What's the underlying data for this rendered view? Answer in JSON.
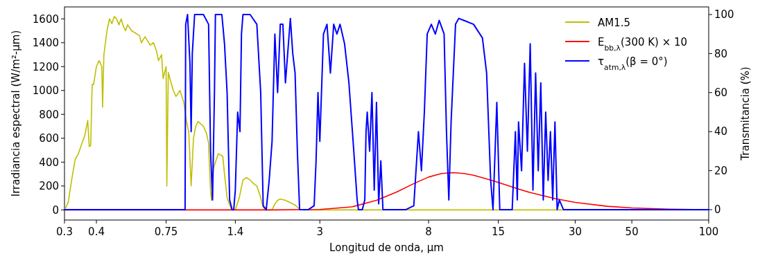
{
  "chart_data": {
    "type": "line",
    "xlabel": "Longitud de onda, μm",
    "ylabel": "Irradiancia espectral (W/m²-μm)",
    "y2label": "Transmitancia (%)",
    "log": "x",
    "xlim": [
      0.3,
      100
    ],
    "xticks": [
      0.3,
      0.4,
      0.75,
      1.4,
      3,
      8,
      15,
      30,
      50,
      100
    ],
    "ylim": [
      -85,
      1700
    ],
    "yticks": [
      0,
      200,
      400,
      600,
      800,
      1000,
      1200,
      1400,
      1600
    ],
    "y2lim": [
      -5.3,
      103.9
    ],
    "y2ticks": [
      0,
      20,
      40,
      60,
      80,
      100
    ],
    "grid": false,
    "legend": "top right",
    "line_style": "solid",
    "marker": "none",
    "series": [
      {
        "name": "AM1.5",
        "color": "#bfbf00",
        "x": [
          0.3,
          0.31,
          0.32,
          0.33,
          0.34,
          0.35,
          0.36,
          0.37,
          0.375,
          0.38,
          0.385,
          0.39,
          0.4,
          0.41,
          0.42,
          0.423,
          0.428,
          0.44,
          0.45,
          0.46,
          0.47,
          0.48,
          0.49,
          0.5,
          0.51,
          0.52,
          0.53,
          0.55,
          0.57,
          0.59,
          0.6,
          0.62,
          0.65,
          0.67,
          0.69,
          0.7,
          0.72,
          0.73,
          0.75,
          0.755,
          0.765,
          0.8,
          0.82,
          0.85,
          0.88,
          0.9,
          0.92,
          0.94,
          0.96,
          0.98,
          1.0,
          1.05,
          1.08,
          1.1,
          1.12,
          1.13,
          1.15,
          1.2,
          1.25,
          1.27,
          1.3,
          1.35,
          1.4,
          1.45,
          1.5,
          1.55,
          1.6,
          1.65,
          1.7,
          1.75,
          1.8,
          1.85,
          1.95,
          2.0,
          2.05,
          2.1,
          2.2,
          2.3,
          2.4,
          2.5,
          2.6,
          100
        ],
        "values": [
          0,
          60,
          250,
          420,
          470,
          550,
          620,
          750,
          530,
          540,
          1050,
          1050,
          1200,
          1250,
          1200,
          860,
          1300,
          1500,
          1600,
          1560,
          1620,
          1600,
          1550,
          1600,
          1540,
          1500,
          1550,
          1500,
          1480,
          1460,
          1400,
          1450,
          1380,
          1400,
          1320,
          1250,
          1300,
          1100,
          1200,
          200,
          1150,
          1000,
          950,
          1000,
          900,
          750,
          650,
          200,
          600,
          700,
          740,
          700,
          640,
          560,
          150,
          80,
          350,
          470,
          450,
          300,
          100,
          5,
          0,
          100,
          250,
          270,
          250,
          220,
          200,
          120,
          20,
          0,
          0,
          50,
          80,
          90,
          80,
          60,
          40,
          5,
          0,
          0
        ]
      },
      {
        "name": "E$_{bb,λ}$(300 K) × 10",
        "color": "#ff0000",
        "x": [
          0.3,
          1,
          2,
          3,
          4,
          5,
          6,
          7,
          8,
          9,
          10,
          11,
          12,
          14,
          16,
          18,
          20,
          25,
          30,
          40,
          50,
          70,
          100
        ],
        "values": [
          0,
          0,
          0,
          3,
          25,
          80,
          150,
          220,
          275,
          305,
          312,
          305,
          290,
          250,
          210,
          175,
          145,
          95,
          63,
          30,
          16,
          6,
          2
        ]
      },
      {
        "name": "τ$_{atm,λ}$(β = 0°)",
        "color": "#0000ff",
        "axis": "y2",
        "x": [
          0.3,
          0.89,
          0.895,
          0.91,
          0.93,
          0.94,
          0.95,
          0.97,
          1.05,
          1.1,
          1.12,
          1.14,
          1.16,
          1.17,
          1.24,
          1.27,
          1.3,
          1.33,
          1.36,
          1.38,
          1.4,
          1.43,
          1.46,
          1.48,
          1.5,
          1.6,
          1.7,
          1.76,
          1.8,
          1.85,
          1.9,
          1.95,
          2.0,
          2.05,
          2.1,
          2.15,
          2.2,
          2.3,
          2.35,
          2.4,
          2.45,
          2.5,
          2.7,
          2.85,
          2.9,
          2.95,
          3.0,
          3.1,
          3.2,
          3.3,
          3.4,
          3.5,
          3.6,
          3.75,
          3.9,
          4.05,
          4.2,
          4.25,
          4.4,
          4.5,
          4.55,
          4.6,
          4.7,
          4.8,
          4.9,
          5.0,
          5.1,
          5.2,
          5.3,
          6.5,
          7.0,
          7.3,
          7.5,
          7.7,
          7.9,
          8.2,
          8.5,
          8.8,
          9.2,
          9.4,
          9.6,
          9.8,
          10.2,
          10.5,
          11,
          12,
          13,
          13.5,
          14,
          14.3,
          14.8,
          15.2,
          17,
          17.5,
          17.8,
          18,
          18.5,
          19,
          19.5,
          20,
          20.5,
          21,
          21.5,
          22,
          22.5,
          23,
          23.5,
          24,
          24.5,
          25,
          25.5,
          26,
          27,
          100
        ],
        "values": [
          0,
          0,
          95,
          100,
          75,
          40,
          80,
          100,
          100,
          95,
          30,
          5,
          60,
          100,
          100,
          85,
          60,
          5,
          0,
          0,
          10,
          50,
          40,
          90,
          100,
          100,
          95,
          60,
          2,
          0,
          15,
          35,
          90,
          60,
          95,
          95,
          65,
          98,
          80,
          70,
          30,
          0,
          0,
          2,
          25,
          60,
          35,
          90,
          95,
          70,
          95,
          90,
          95,
          85,
          65,
          35,
          5,
          0,
          0,
          5,
          40,
          50,
          30,
          60,
          10,
          55,
          3,
          25,
          0,
          0,
          2,
          40,
          20,
          50,
          90,
          95,
          90,
          97,
          90,
          40,
          5,
          45,
          95,
          98,
          97,
          95,
          88,
          70,
          15,
          0,
          55,
          0,
          0,
          40,
          5,
          45,
          20,
          75,
          30,
          85,
          10,
          70,
          20,
          65,
          5,
          50,
          15,
          40,
          5,
          45,
          0,
          5,
          0,
          0
        ]
      }
    ]
  }
}
